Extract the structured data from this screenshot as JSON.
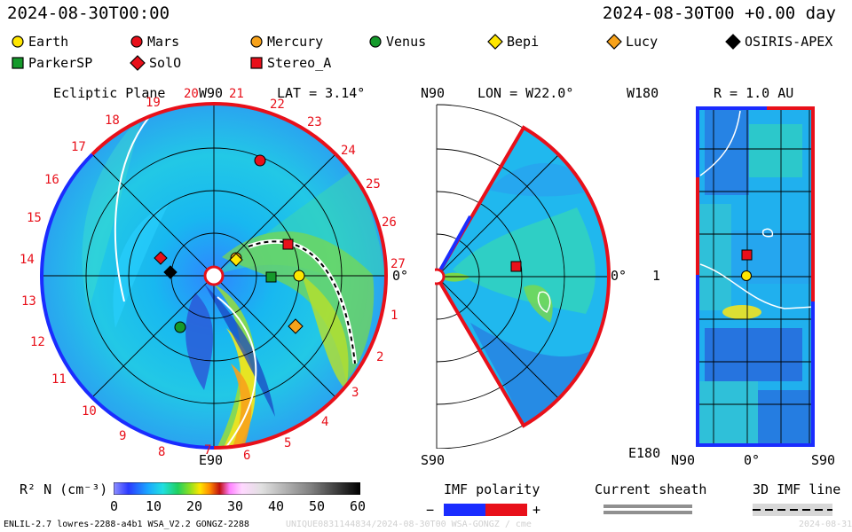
{
  "header": {
    "time_left": "2024-08-30T00:00",
    "time_right": "2024-08-30T00 +0.00 day"
  },
  "objects": [
    {
      "name": "Earth",
      "marker": "circle",
      "color": "#ffe600"
    },
    {
      "name": "Mars",
      "marker": "circle",
      "color": "#e8101a"
    },
    {
      "name": "Mercury",
      "marker": "circle",
      "color": "#f7a21b"
    },
    {
      "name": "Venus",
      "marker": "circle",
      "color": "#159a2b"
    },
    {
      "name": "Bepi",
      "marker": "diamond",
      "color": "#ffe600"
    },
    {
      "name": "Lucy",
      "marker": "diamond",
      "color": "#f7a21b"
    },
    {
      "name": "OSIRIS-APEX",
      "marker": "diamond",
      "color": "#000000"
    },
    {
      "name": "ParkerSP",
      "marker": "square",
      "color": "#159a2b"
    },
    {
      "name": "SolO",
      "marker": "diamond",
      "color": "#e8101a"
    },
    {
      "name": "Stereo_A",
      "marker": "square",
      "color": "#e8101a"
    }
  ],
  "panels": {
    "ecliptic": {
      "title": "Ecliptic Plane",
      "lat": "LAT = 3.14°",
      "top_label": "W90",
      "bottom_label": "E90",
      "right_label": "0°",
      "carrington": [
        "19",
        "20",
        "21",
        "22",
        "23",
        "24",
        "25",
        "26",
        "27",
        "1",
        "2",
        "3",
        "4",
        "5",
        "6",
        "7",
        "8",
        "9",
        "10",
        "11",
        "12",
        "13",
        "14",
        "15",
        "16",
        "17",
        "18"
      ]
    },
    "meridional": {
      "lon": "LON = W22.0°",
      "top_label": "N90",
      "bottom_label": "S90",
      "right_label": "0°"
    },
    "radial": {
      "r": "R = 1.0 AU",
      "top_left": "W180",
      "bottom_left": "E180",
      "mid_left": "1",
      "bottom_ticks": [
        "N90",
        "0°",
        "S90"
      ]
    }
  },
  "colorbar": {
    "label": "R² N (cm⁻³)",
    "ticks": [
      "0",
      "10",
      "20",
      "30",
      "40",
      "50",
      "60"
    ],
    "range": [
      0,
      60
    ]
  },
  "legends": {
    "imf_polarity": "IMF polarity",
    "minus": "−",
    "plus": "+",
    "current_sheath": "Current sheath",
    "imf_line": "3D IMF line"
  },
  "footer": {
    "model": "ENLIL-2.7 lowres-2288-a4b1 WSA_V2.2 GONGZ-2288",
    "run_id": "UNIQUE0831144834/2024-08-30T00 WSA-GONGZ / cme",
    "date_right": "2024-08-31"
  }
}
